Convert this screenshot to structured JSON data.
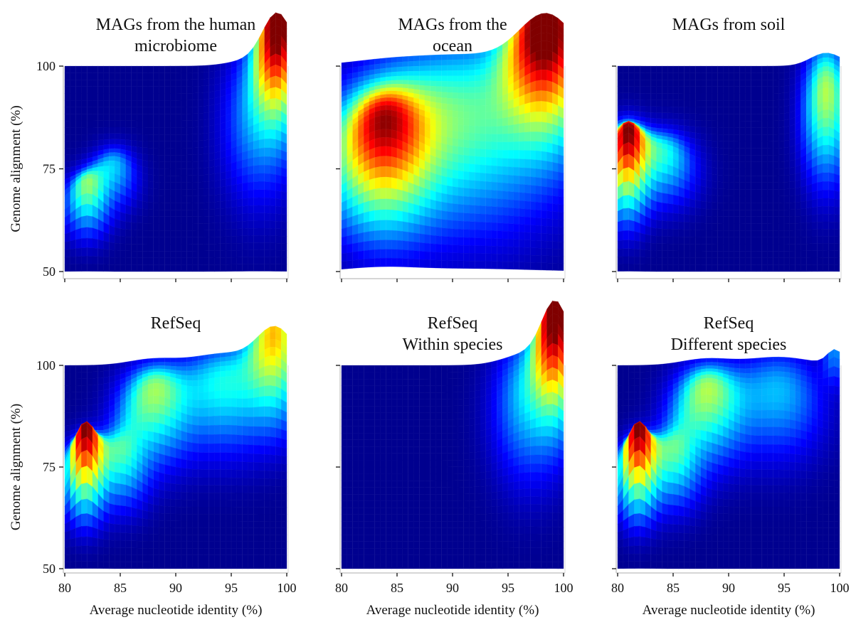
{
  "colorscale": [
    "#00008f",
    "#0000ff",
    "#0080ff",
    "#00ffff",
    "#80ff80",
    "#ffff00",
    "#ff8000",
    "#ff0000",
    "#800000"
  ],
  "chart_data": [
    {
      "type": "surface",
      "title_lines": [
        "MAGs from the human",
        "microbiome"
      ],
      "xlabel": "",
      "ylabel": "Genome alignment (%)",
      "xticks": [
        80,
        85,
        90,
        95,
        100
      ],
      "yticks": [
        50,
        75,
        100
      ],
      "show_xticklabels": false,
      "show_yticklabels": true,
      "xlim": [
        80,
        100
      ],
      "ylim": [
        50,
        100
      ],
      "peaks": [
        {
          "x": 99.2,
          "y": 99,
          "height": 1.0,
          "sx": 1.3,
          "sy": 10
        },
        {
          "x": 82.0,
          "y": 65,
          "height": 0.5,
          "sx": 1.3,
          "sy": 5
        },
        {
          "x": 84.5,
          "y": 72,
          "height": 0.3,
          "sx": 1.4,
          "sy": 5
        },
        {
          "x": 97.5,
          "y": 85,
          "height": 0.3,
          "sx": 2.2,
          "sy": 13
        }
      ]
    },
    {
      "type": "surface",
      "title_lines": [
        "MAGs from the",
        "ocean"
      ],
      "xlabel": "",
      "ylabel": "",
      "xticks": [
        80,
        85,
        90,
        95,
        100
      ],
      "yticks": [
        50,
        75,
        100
      ],
      "show_xticklabels": false,
      "show_yticklabels": false,
      "xlim": [
        80,
        100
      ],
      "ylim": [
        50,
        100
      ],
      "peaks": [
        {
          "x": 98.5,
          "y": 98,
          "height": 1.0,
          "sx": 2.4,
          "sy": 12
        },
        {
          "x": 83.5,
          "y": 74,
          "height": 0.78,
          "sx": 3.0,
          "sy": 11
        },
        {
          "x": 91.0,
          "y": 82,
          "height": 0.45,
          "sx": 6.0,
          "sy": 16
        }
      ]
    },
    {
      "type": "surface",
      "title_lines": [
        "MAGs from soil"
      ],
      "xlabel": "",
      "ylabel": "",
      "xticks": [
        80,
        85,
        90,
        95,
        100
      ],
      "yticks": [
        50,
        75,
        100
      ],
      "show_xticklabels": false,
      "show_yticklabels": false,
      "xlim": [
        80,
        100
      ],
      "ylim": [
        50,
        100
      ],
      "peaks": [
        {
          "x": 80.8,
          "y": 72,
          "height": 0.92,
          "sx": 1.2,
          "sy": 7
        },
        {
          "x": 84.0,
          "y": 74,
          "height": 0.4,
          "sx": 2.0,
          "sy": 6
        },
        {
          "x": 98.8,
          "y": 87,
          "height": 0.55,
          "sx": 1.4,
          "sy": 11
        }
      ]
    },
    {
      "type": "surface",
      "title_lines": [
        "RefSeq"
      ],
      "xlabel": "Average nucleotide identity (%)",
      "ylabel": "Genome alignment (%)",
      "xticks": [
        80,
        85,
        90,
        95,
        100
      ],
      "yticks": [
        50,
        75,
        100
      ],
      "show_xticklabels": true,
      "show_yticklabels": true,
      "xlim": [
        80,
        100
      ],
      "ylim": [
        50,
        100
      ],
      "peaks": [
        {
          "x": 81.8,
          "y": 70,
          "height": 0.98,
          "sx": 1.1,
          "sy": 6
        },
        {
          "x": 99.0,
          "y": 99,
          "height": 0.62,
          "sx": 1.6,
          "sy": 10
        },
        {
          "x": 88.0,
          "y": 86,
          "height": 0.5,
          "sx": 2.2,
          "sy": 8
        },
        {
          "x": 85.0,
          "y": 72,
          "height": 0.4,
          "sx": 1.6,
          "sy": 6
        },
        {
          "x": 94.5,
          "y": 90,
          "height": 0.38,
          "sx": 2.8,
          "sy": 9
        }
      ]
    },
    {
      "type": "surface",
      "title_lines": [
        "RefSeq",
        "Within species"
      ],
      "xlabel": "Average nucleotide identity (%)",
      "ylabel": "",
      "xticks": [
        80,
        85,
        90,
        95,
        100
      ],
      "yticks": [
        50,
        75,
        100
      ],
      "show_xticklabels": true,
      "show_yticklabels": false,
      "xlim": [
        80,
        100
      ],
      "ylim": [
        50,
        100
      ],
      "peaks": [
        {
          "x": 99.3,
          "y": 99,
          "height": 1.0,
          "sx": 1.2,
          "sy": 10
        },
        {
          "x": 97.0,
          "y": 88,
          "height": 0.35,
          "sx": 2.2,
          "sy": 12
        }
      ]
    },
    {
      "type": "surface",
      "title_lines": [
        "RefSeq",
        "Different species"
      ],
      "xlabel": "Average nucleotide identity (%)",
      "ylabel": "",
      "xticks": [
        80,
        85,
        90,
        95,
        100
      ],
      "yticks": [
        50,
        75,
        100
      ],
      "show_xticklabels": true,
      "show_yticklabels": false,
      "xlim": [
        80,
        100
      ],
      "ylim": [
        50,
        100
      ],
      "peaks": [
        {
          "x": 81.8,
          "y": 70,
          "height": 0.98,
          "sx": 1.1,
          "sy": 6
        },
        {
          "x": 88.0,
          "y": 86,
          "height": 0.52,
          "sx": 2.2,
          "sy": 8
        },
        {
          "x": 85.0,
          "y": 72,
          "height": 0.42,
          "sx": 1.6,
          "sy": 6
        },
        {
          "x": 94.5,
          "y": 89,
          "height": 0.3,
          "sx": 2.8,
          "sy": 9
        },
        {
          "x": 99.6,
          "y": 100,
          "height": 0.25,
          "sx": 0.7,
          "sy": 4
        }
      ]
    }
  ]
}
